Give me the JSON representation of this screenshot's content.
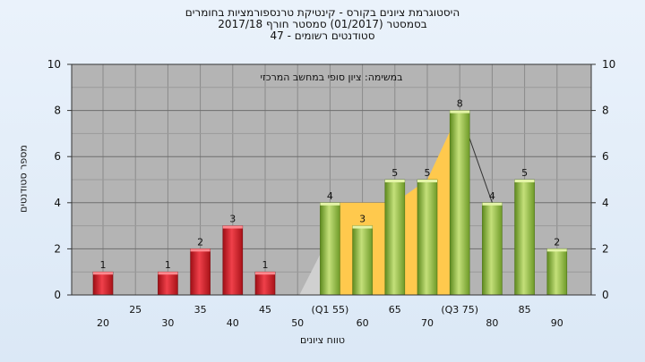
{
  "title_lines": [
    "היסטוגרמת ציונים בקורס - קינטיקת טרנספורמציות בחומרים",
    "בסמסטר  (01/2017)  סמסטר חורף  2017/18",
    "סטודנטים רשומים - 47"
  ],
  "chart_data": {
    "type": "bar",
    "subtitle": "במשימה: ציון סופי במחשב המרכזי",
    "ylabel": "מספר סטודנטים",
    "xlabel": "טווח ציונים",
    "ylim": [
      0,
      10
    ],
    "yticks": [
      0,
      2,
      4,
      6,
      8,
      10
    ],
    "categories": [
      "20",
      "25",
      "30",
      "35",
      "40",
      "45",
      "50",
      "(Q1 55)",
      "60",
      "65",
      "70",
      "(Q3 75)",
      "80",
      "85",
      "90"
    ],
    "values": [
      1,
      0,
      1,
      2,
      3,
      1,
      0,
      4,
      3,
      5,
      5,
      8,
      4,
      5,
      2
    ],
    "value_labels": [
      "1",
      "",
      "1",
      "2",
      "3",
      "1",
      "",
      "4",
      "3",
      "5",
      "5",
      "8",
      "4",
      "5",
      "2"
    ],
    "bar_colors": [
      "#d8202a",
      "#d8202a",
      "#d8202a",
      "#d8202a",
      "#d8202a",
      "#d8202a",
      "#8dc63f",
      "#8dc63f",
      "#8dc63f",
      "#8dc63f",
      "#8dc63f",
      "#8dc63f",
      "#8dc63f",
      "#8dc63f",
      "#8dc63f"
    ],
    "quartile_band_color": "#ffc94d",
    "outer_band_color": "#d0d0d0",
    "plot_background": "#b4b4b4",
    "grid": true
  }
}
